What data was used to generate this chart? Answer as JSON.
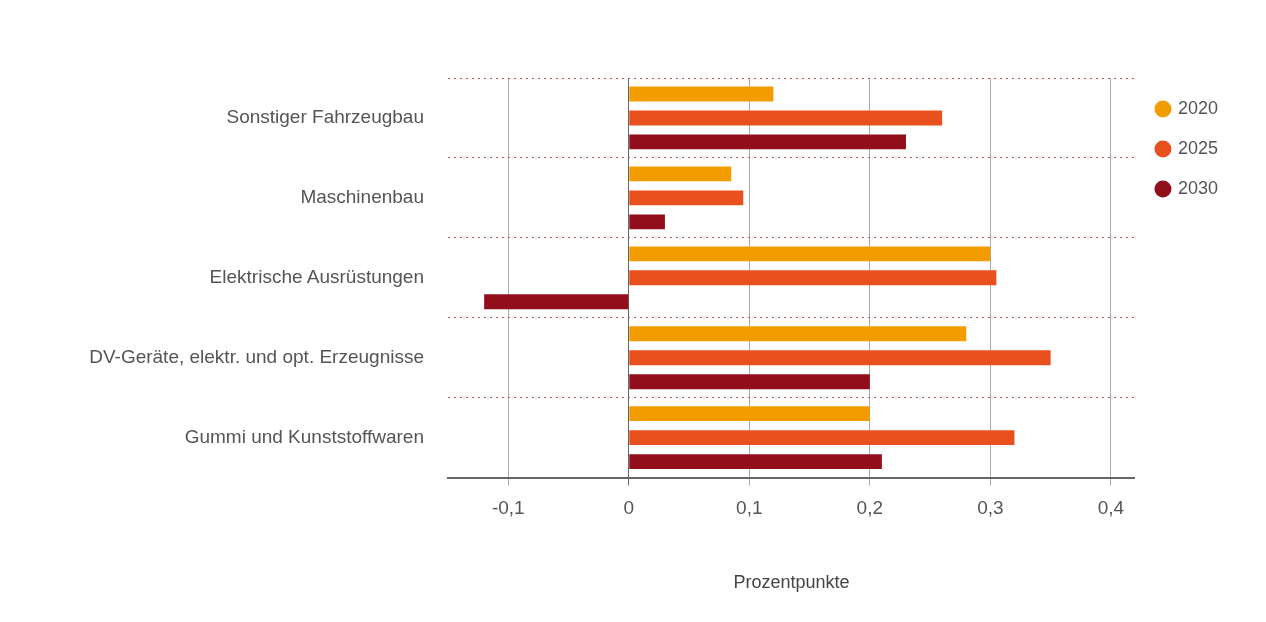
{
  "chart_data": {
    "type": "bar",
    "orientation": "horizontal",
    "xlabel": "Prozentpunkte",
    "categories": [
      "Sonstiger Fahrzeugbau",
      "Maschinenbau",
      "Elektrische Ausrüstungen",
      "DV-Geräte, elektr. und opt. Erzeugnisse",
      "Gummi und Kunststoffwaren"
    ],
    "series": [
      {
        "name": "2020",
        "color": "#f39c00",
        "values": [
          0.12,
          0.085,
          0.3,
          0.28,
          0.2
        ]
      },
      {
        "name": "2025",
        "color": "#e8501e",
        "values": [
          0.26,
          0.095,
          0.305,
          0.35,
          0.32
        ]
      },
      {
        "name": "2030",
        "color": "#930e1b",
        "values": [
          0.23,
          0.03,
          -0.12,
          0.2,
          0.21
        ]
      }
    ],
    "xlim": [
      -0.15,
      0.42
    ],
    "xticks": [
      {
        "value": -0.1,
        "label": "-0,1"
      },
      {
        "value": 0,
        "label": "0"
      },
      {
        "value": 0.1,
        "label": "0,1"
      },
      {
        "value": 0.2,
        "label": "0,2"
      },
      {
        "value": 0.3,
        "label": "0,3"
      },
      {
        "value": 0.4,
        "label": "0,4"
      }
    ],
    "grid": true,
    "legend": "right"
  }
}
